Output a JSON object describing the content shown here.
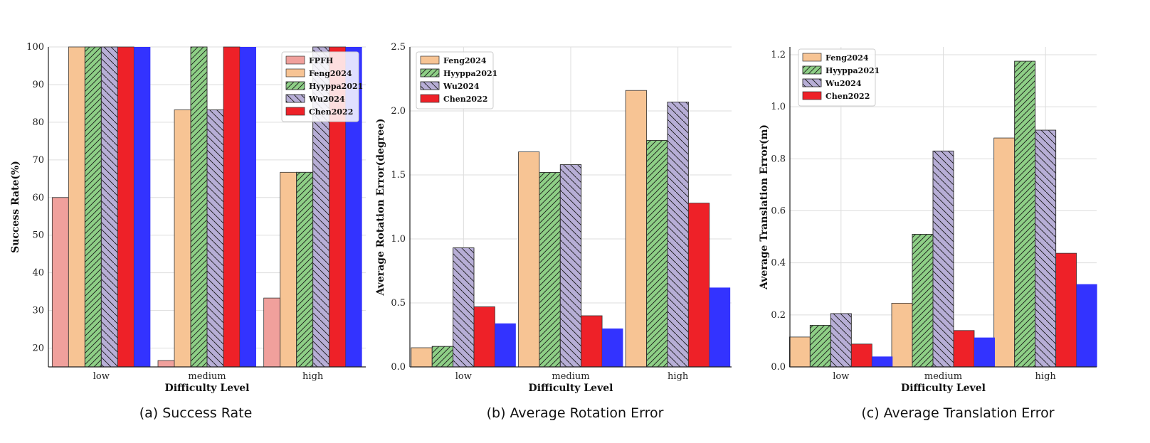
{
  "colors": {
    "FPFH": "#f0a09c",
    "Feng2024": "#f7c494",
    "Hyyppa2021": "#8ecf86",
    "Wu2024": "#b7aed6",
    "Chen2022": "#ee2128",
    "Unlabeled": "#3333ff",
    "grid": "#dddddd"
  },
  "chart_data": [
    {
      "type": "bar",
      "caption": "(a) Success Rate",
      "xlabel": "Difficulty Level",
      "ylabel": "Success Rate(%)",
      "categories": [
        "low",
        "medium",
        "high"
      ],
      "ylim": [
        15,
        100
      ],
      "yticks": [
        20,
        30,
        40,
        50,
        60,
        70,
        80,
        90,
        100
      ],
      "tick_labels": [
        "20",
        "30",
        "40",
        "50",
        "60",
        "70",
        "80",
        "90",
        "100"
      ],
      "legend_position": "top-right",
      "series": [
        {
          "name": "FPFH",
          "values": [
            60,
            16.7,
            33.3
          ],
          "hatch": "none"
        },
        {
          "name": "Feng2024",
          "values": [
            100,
            83.3,
            66.7
          ],
          "hatch": "none"
        },
        {
          "name": "Hyyppa2021",
          "values": [
            100,
            100,
            66.7
          ],
          "hatch": "fwd"
        },
        {
          "name": "Wu2024",
          "values": [
            100,
            83.3,
            100
          ],
          "hatch": "back"
        },
        {
          "name": "Chen2022",
          "values": [
            100,
            100,
            100
          ],
          "hatch": "none"
        },
        {
          "name": "",
          "values": [
            100,
            100,
            100
          ],
          "hatch": "none",
          "legend": false
        }
      ]
    },
    {
      "type": "bar",
      "caption": "(b) Average Rotation Error",
      "xlabel": "Difficulty Level",
      "ylabel": "Average Rotation Error(degree)",
      "categories": [
        "low",
        "medium",
        "high"
      ],
      "ylim": [
        0,
        2.5
      ],
      "yticks": [
        0,
        0.5,
        1.0,
        1.5,
        2.0,
        2.5
      ],
      "tick_labels": [
        "0.0",
        "0.5",
        "1.0",
        "1.5",
        "2.0",
        "2.5"
      ],
      "legend_position": "top-left",
      "series": [
        {
          "name": "Feng2024",
          "values": [
            0.15,
            1.68,
            2.16
          ],
          "hatch": "none"
        },
        {
          "name": "Hyyppa2021",
          "values": [
            0.16,
            1.52,
            1.77
          ],
          "hatch": "fwd"
        },
        {
          "name": "Wu2024",
          "values": [
            0.93,
            1.58,
            2.07
          ],
          "hatch": "back"
        },
        {
          "name": "Chen2022",
          "values": [
            0.47,
            0.4,
            1.28
          ],
          "hatch": "none"
        },
        {
          "name": "",
          "values": [
            0.34,
            0.3,
            0.62
          ],
          "hatch": "none",
          "legend": false
        }
      ]
    },
    {
      "type": "bar",
      "caption": "(c) Average Translation Error",
      "xlabel": "Difficulty Level",
      "ylabel": "Average Translation Error(m)",
      "categories": [
        "low",
        "medium",
        "high"
      ],
      "ylim": [
        0,
        1.23
      ],
      "yticks": [
        0,
        0.2,
        0.4,
        0.6,
        0.8,
        1.0,
        1.2
      ],
      "tick_labels": [
        "0.0",
        "0.2",
        "0.4",
        "0.6",
        "0.8",
        "1.0",
        "1.2"
      ],
      "legend_position": "top-left",
      "series": [
        {
          "name": "Feng2024",
          "values": [
            0.115,
            0.245,
            0.88
          ],
          "hatch": "none"
        },
        {
          "name": "Hyyppa2021",
          "values": [
            0.16,
            0.51,
            1.175
          ],
          "hatch": "fwd"
        },
        {
          "name": "Wu2024",
          "values": [
            0.205,
            0.83,
            0.91
          ],
          "hatch": "back"
        },
        {
          "name": "Chen2022",
          "values": [
            0.088,
            0.14,
            0.437
          ],
          "hatch": "none"
        },
        {
          "name": "",
          "values": [
            0.04,
            0.113,
            0.318
          ],
          "hatch": "none",
          "legend": false
        }
      ]
    }
  ]
}
